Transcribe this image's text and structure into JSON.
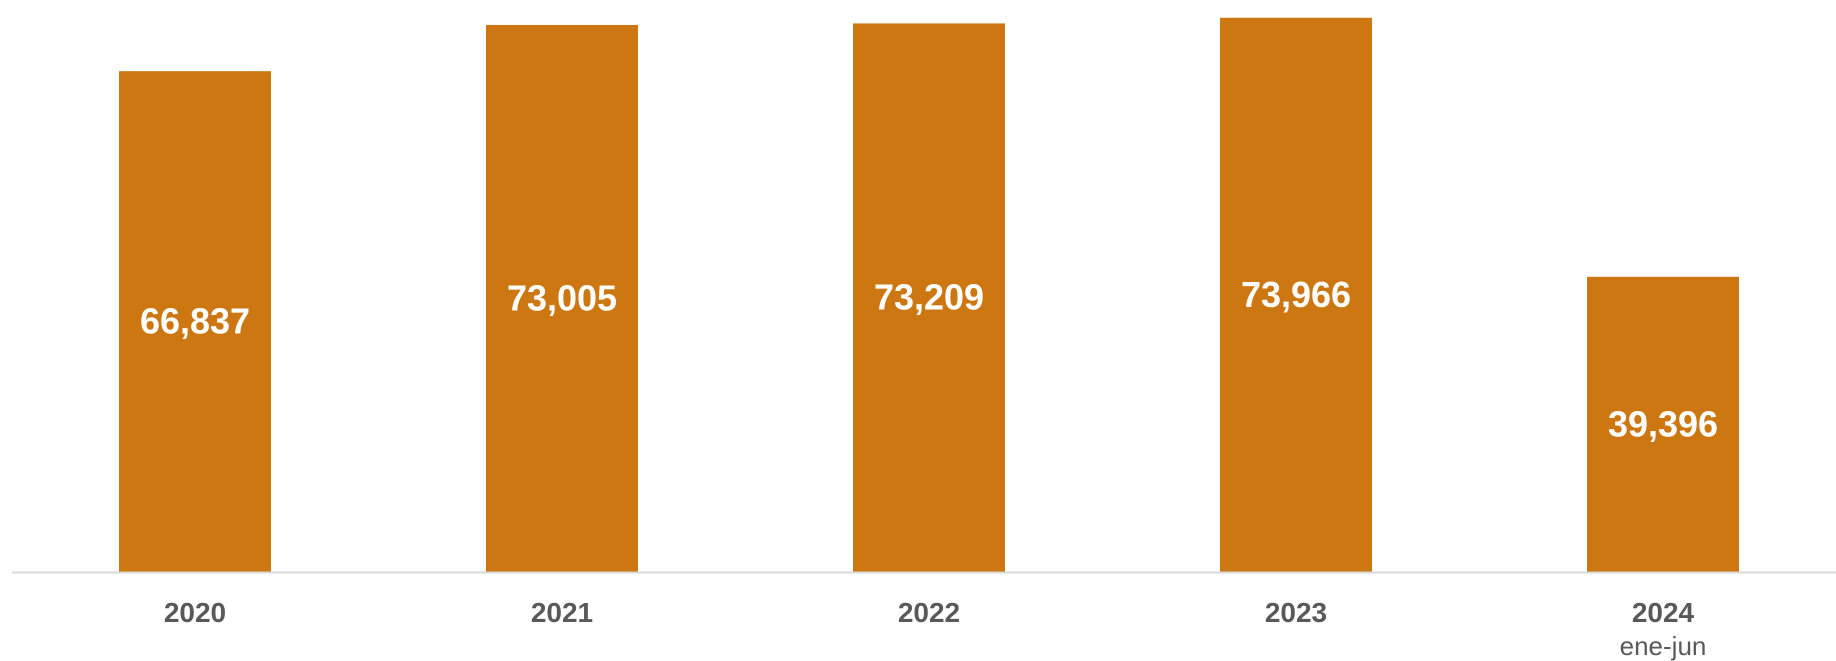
{
  "chart_data": {
    "type": "bar",
    "categories": [
      "2020",
      "2021",
      "2022",
      "2023",
      "2024"
    ],
    "category_sublabels": [
      "",
      "",
      "",
      "",
      "ene-jun"
    ],
    "values": [
      66837,
      73005,
      73209,
      73966,
      39396
    ],
    "value_labels": [
      "66,837",
      "73,005",
      "73,209",
      "73,966",
      "39,396"
    ],
    "title": "",
    "xlabel": "",
    "ylabel": "",
    "ylim": [
      0,
      75000
    ],
    "grid": false,
    "legend": "none",
    "colors": {
      "bar": "#CC7711",
      "axis": "#D9D9D9",
      "tick_text": "#595959",
      "value_text": "#FFFFFF"
    }
  }
}
